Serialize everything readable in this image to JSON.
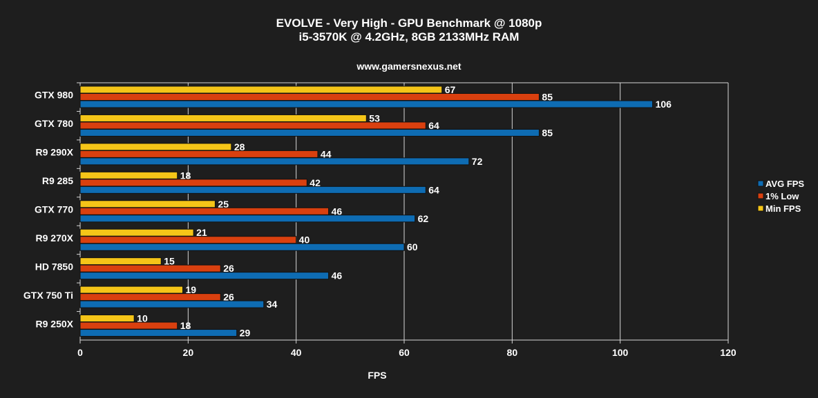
{
  "chart_data": {
    "type": "bar",
    "orientation": "horizontal",
    "title": "EVOLVE - Very High - GPU Benchmark @ 1080p",
    "subtitle": "i5-3570K @ 4.2GHz, 8GB 2133MHz RAM",
    "source": "www.gamersnexus.net",
    "xlabel": "FPS",
    "ylabel": "",
    "xlim": [
      0,
      120
    ],
    "xticks": [
      0,
      20,
      40,
      60,
      80,
      100,
      120
    ],
    "grid": true,
    "legend_position": "right",
    "categories": [
      "GTX 980",
      "GTX 780",
      "R9 290X",
      "R9 285",
      "GTX 770",
      "R9 270X",
      "HD 7850",
      "GTX 750 Ti",
      "R9 250X"
    ],
    "series": [
      {
        "name": "Min FPS",
        "color": "#f5c518",
        "values": [
          67,
          53,
          28,
          18,
          25,
          21,
          15,
          19,
          10
        ]
      },
      {
        "name": "1% Low",
        "color": "#d9400f",
        "values": [
          85,
          64,
          44,
          42,
          46,
          40,
          26,
          26,
          18
        ]
      },
      {
        "name": "AVG FPS",
        "color": "#0e6cb3",
        "values": [
          106,
          85,
          72,
          64,
          62,
          60,
          46,
          34,
          29
        ]
      }
    ],
    "legend_order": [
      "AVG FPS",
      "1% Low",
      "Min FPS"
    ]
  }
}
